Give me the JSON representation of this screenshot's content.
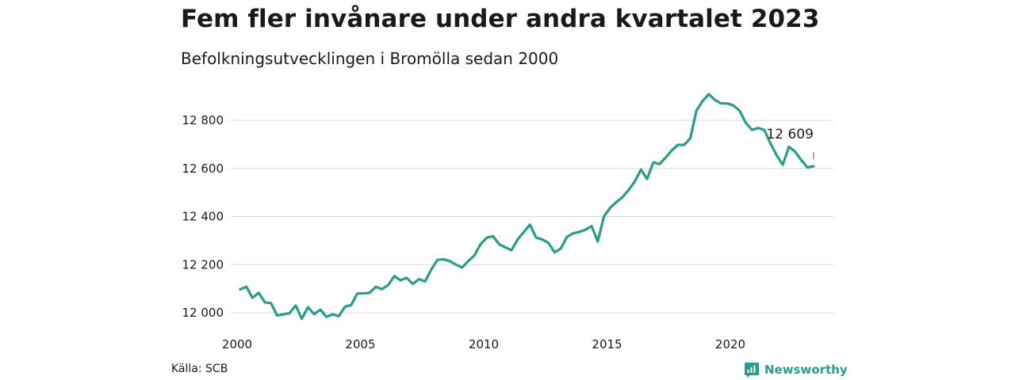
{
  "header": {
    "title": "Fem fler invånare under andra kvartalet 2023",
    "subtitle": "Befolkningsutvecklingen i Bromölla sedan 2000"
  },
  "footer": {
    "source": "Källa: SCB",
    "brand": "Newsworthy"
  },
  "colors": {
    "line": "#2a9d8a",
    "grid": "#d9d9d9",
    "text": "#1a1a1a"
  },
  "chart_data": {
    "type": "line",
    "title": "Fem fler invånare under andra kvartalet 2023",
    "subtitle": "Befolkningsutvecklingen i Bromölla sedan 2000",
    "xlabel": "",
    "ylabel": "",
    "grid": true,
    "xlim": [
      2000,
      2024
    ],
    "ylim": [
      11980,
      12910
    ],
    "y_ticks": [
      {
        "value": 12000,
        "label": "12 000"
      },
      {
        "value": 12200,
        "label": "12 200"
      },
      {
        "value": 12400,
        "label": "12 400"
      },
      {
        "value": 12600,
        "label": "12 600"
      },
      {
        "value": 12800,
        "label": "12 800"
      }
    ],
    "x_ticks": [
      {
        "value": 2000,
        "label": "2000"
      },
      {
        "value": 2005,
        "label": "2005"
      },
      {
        "value": 2010,
        "label": "2010"
      },
      {
        "value": 2015,
        "label": "2015"
      },
      {
        "value": 2020,
        "label": "2020"
      }
    ],
    "annotation": {
      "x": 2023.375,
      "label": "12 609"
    },
    "series": [
      {
        "points": [
          [
            2000.125,
            12097
          ],
          [
            2000.375,
            12108
          ],
          [
            2000.625,
            12062
          ],
          [
            2000.875,
            12083
          ],
          [
            2001.125,
            12043
          ],
          [
            2001.375,
            12040
          ],
          [
            2001.625,
            11988
          ],
          [
            2001.875,
            11993
          ],
          [
            2002.125,
            11998
          ],
          [
            2002.375,
            12030
          ],
          [
            2002.625,
            11975
          ],
          [
            2002.875,
            12023
          ],
          [
            2003.125,
            11994
          ],
          [
            2003.375,
            12013
          ],
          [
            2003.625,
            11983
          ],
          [
            2003.875,
            11993
          ],
          [
            2004.125,
            11986
          ],
          [
            2004.375,
            12025
          ],
          [
            2004.625,
            12032
          ],
          [
            2004.875,
            12080
          ],
          [
            2005.125,
            12080
          ],
          [
            2005.375,
            12083
          ],
          [
            2005.625,
            12108
          ],
          [
            2005.875,
            12098
          ],
          [
            2006.125,
            12115
          ],
          [
            2006.375,
            12152
          ],
          [
            2006.625,
            12135
          ],
          [
            2006.875,
            12145
          ],
          [
            2007.125,
            12120
          ],
          [
            2007.375,
            12140
          ],
          [
            2007.625,
            12130
          ],
          [
            2007.875,
            12180
          ],
          [
            2008.125,
            12220
          ],
          [
            2008.375,
            12222
          ],
          [
            2008.625,
            12215
          ],
          [
            2008.875,
            12200
          ],
          [
            2009.125,
            12188
          ],
          [
            2009.375,
            12215
          ],
          [
            2009.625,
            12238
          ],
          [
            2009.875,
            12285
          ],
          [
            2010.125,
            12312
          ],
          [
            2010.375,
            12318
          ],
          [
            2010.625,
            12285
          ],
          [
            2010.875,
            12272
          ],
          [
            2011.125,
            12260
          ],
          [
            2011.375,
            12305
          ],
          [
            2011.625,
            12335
          ],
          [
            2011.875,
            12366
          ],
          [
            2012.125,
            12312
          ],
          [
            2012.375,
            12305
          ],
          [
            2012.625,
            12290
          ],
          [
            2012.875,
            12251
          ],
          [
            2013.125,
            12267
          ],
          [
            2013.375,
            12315
          ],
          [
            2013.625,
            12330
          ],
          [
            2013.875,
            12336
          ],
          [
            2014.125,
            12345
          ],
          [
            2014.375,
            12360
          ],
          [
            2014.625,
            12296
          ],
          [
            2014.875,
            12400
          ],
          [
            2015.125,
            12436
          ],
          [
            2015.375,
            12460
          ],
          [
            2015.625,
            12480
          ],
          [
            2015.875,
            12510
          ],
          [
            2016.125,
            12546
          ],
          [
            2016.375,
            12595
          ],
          [
            2016.625,
            12556
          ],
          [
            2016.875,
            12625
          ],
          [
            2017.125,
            12618
          ],
          [
            2017.375,
            12645
          ],
          [
            2017.625,
            12675
          ],
          [
            2017.875,
            12698
          ],
          [
            2018.125,
            12698
          ],
          [
            2018.375,
            12725
          ],
          [
            2018.625,
            12840
          ],
          [
            2018.875,
            12880
          ],
          [
            2019.125,
            12909
          ],
          [
            2019.375,
            12885
          ],
          [
            2019.625,
            12870
          ],
          [
            2019.875,
            12870
          ],
          [
            2020.125,
            12862
          ],
          [
            2020.375,
            12840
          ],
          [
            2020.625,
            12790
          ],
          [
            2020.875,
            12760
          ],
          [
            2021.125,
            12768
          ],
          [
            2021.375,
            12760
          ],
          [
            2021.625,
            12705
          ],
          [
            2021.875,
            12655
          ],
          [
            2022.125,
            12615
          ],
          [
            2022.375,
            12690
          ],
          [
            2022.625,
            12670
          ],
          [
            2022.875,
            12635
          ],
          [
            2023.125,
            12604
          ],
          [
            2023.375,
            12609
          ]
        ]
      }
    ]
  }
}
